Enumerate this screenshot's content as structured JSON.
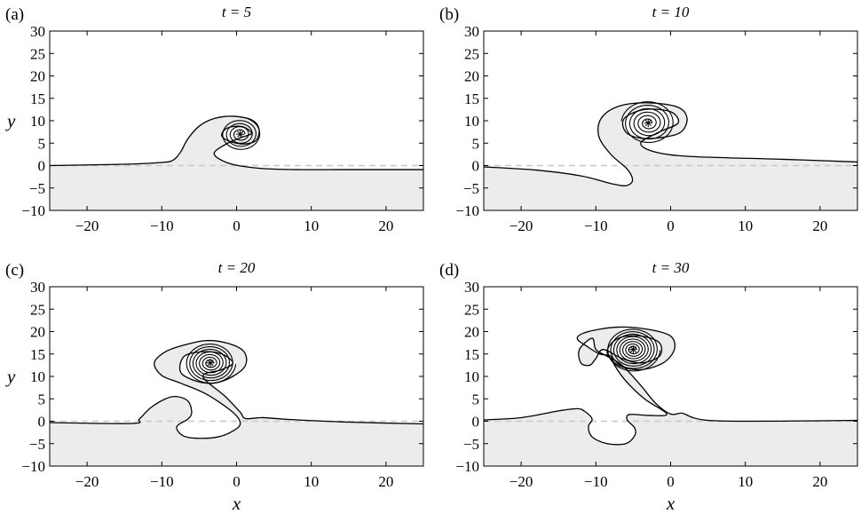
{
  "chart_data": [
    {
      "panel_label": "(a)",
      "title": "t = 5",
      "type": "area",
      "xlabel": "",
      "ylabel": "y",
      "xlim": [
        -25,
        25
      ],
      "ylim": [
        -10,
        30
      ],
      "xticks": [
        "−20",
        "−10",
        "0",
        "10",
        "20"
      ],
      "yticks": [
        "−10",
        "−5",
        "0",
        "5",
        "10",
        "15",
        "20",
        "25",
        "30"
      ],
      "vortex_center": [
        0.5,
        7
      ],
      "interface": [
        [
          -25,
          0
        ],
        [
          -15,
          0.3
        ],
        [
          -10,
          0.7
        ],
        [
          -8.5,
          1.2
        ],
        [
          -7.5,
          3
        ],
        [
          -6.5,
          6
        ],
        [
          -5,
          8.8
        ],
        [
          -3,
          10.5
        ],
        [
          -0.5,
          11
        ],
        [
          2,
          10.2
        ],
        [
          3,
          8.2
        ],
        [
          2.6,
          5.6
        ],
        [
          0.8,
          4.8
        ],
        [
          -1.2,
          5.6
        ],
        [
          -2,
          6.8
        ],
        [
          -1.2,
          8.4
        ],
        [
          0.7,
          8.7
        ],
        [
          2,
          7.2
        ],
        [
          0.5,
          6.2
        ],
        [
          -1.5,
          4.7
        ],
        [
          -3,
          2.6
        ],
        [
          -1,
          0.5
        ],
        [
          3,
          -0.6
        ],
        [
          8,
          -0.9
        ],
        [
          15,
          -0.9
        ],
        [
          25,
          -0.9
        ]
      ],
      "spiral": {
        "a": 0.6,
        "b": 2.7,
        "turns": 4.2
      }
    },
    {
      "panel_label": "(b)",
      "title": "t = 10",
      "type": "area",
      "xlabel": "",
      "ylabel": "",
      "xlim": [
        -25,
        25
      ],
      "ylim": [
        -10,
        30
      ],
      "xticks": [
        "−20",
        "−10",
        "0",
        "10",
        "20"
      ],
      "yticks": [
        "−10",
        "−5",
        "0",
        "5",
        "10",
        "15",
        "20",
        "25",
        "30"
      ],
      "vortex_center": [
        -3,
        9.5
      ],
      "interface": [
        [
          -25,
          -0.3
        ],
        [
          -18,
          -1
        ],
        [
          -12,
          -2.3
        ],
        [
          -8,
          -4
        ],
        [
          -6,
          -4.5
        ],
        [
          -5.1,
          -3.3
        ],
        [
          -5.8,
          -0.8
        ],
        [
          -8,
          2.5
        ],
        [
          -9.6,
          6.5
        ],
        [
          -9.3,
          10.5
        ],
        [
          -7,
          13.2
        ],
        [
          -3,
          14
        ],
        [
          1,
          13
        ],
        [
          2.2,
          10.5
        ],
        [
          1.4,
          7.5
        ],
        [
          -1,
          6.3
        ],
        [
          -4,
          6.1
        ],
        [
          -6,
          7.5
        ],
        [
          -6.2,
          10.5
        ],
        [
          -3.5,
          12.5
        ],
        [
          0,
          12
        ],
        [
          1,
          9.5
        ],
        [
          -1.5,
          7.5
        ],
        [
          -4,
          5
        ],
        [
          -2,
          3
        ],
        [
          3,
          2
        ],
        [
          15,
          1.4
        ],
        [
          25,
          0.8
        ]
      ],
      "spiral": {
        "a": 0.5,
        "b": 3.6,
        "turns": 5.5
      }
    },
    {
      "panel_label": "(c)",
      "title": "t = 20",
      "type": "area",
      "xlabel": "x",
      "ylabel": "y",
      "xlim": [
        -25,
        25
      ],
      "ylim": [
        -10,
        30
      ],
      "xticks": [
        "−20",
        "−10",
        "0",
        "10",
        "20"
      ],
      "yticks": [
        "−10",
        "−5",
        "0",
        "5",
        "10",
        "15",
        "20",
        "25",
        "30"
      ],
      "vortex_center": [
        -3.5,
        13
      ],
      "interface": [
        [
          -25,
          -0.3
        ],
        [
          -14,
          -0.5
        ],
        [
          -13,
          0.5
        ],
        [
          -11.5,
          3
        ],
        [
          -9.5,
          5
        ],
        [
          -8,
          5.5
        ],
        [
          -6.5,
          4.5
        ],
        [
          -6,
          2
        ],
        [
          -6.5,
          0.5
        ],
        [
          -8,
          -1.2
        ],
        [
          -7.2,
          -3.2
        ],
        [
          -5.2,
          -3.8
        ],
        [
          -2.5,
          -3.5
        ],
        [
          -0.5,
          -2.2
        ],
        [
          0.5,
          -0.5
        ],
        [
          -0.5,
          2
        ],
        [
          -4,
          6
        ],
        [
          -7.5,
          8.5
        ],
        [
          -10,
          10.2
        ],
        [
          -11,
          13
        ],
        [
          -9.5,
          15.5
        ],
        [
          -7,
          17
        ],
        [
          -4,
          18
        ],
        [
          -1,
          17.3
        ],
        [
          1,
          15.5
        ],
        [
          1.2,
          12.5
        ],
        [
          -0.5,
          10
        ],
        [
          -3,
          8.5
        ],
        [
          -5.5,
          9
        ],
        [
          -7.5,
          11
        ],
        [
          -7,
          14.5
        ],
        [
          -4.5,
          15.5
        ],
        [
          -2,
          15
        ],
        [
          -0.5,
          13
        ],
        [
          -2,
          11.5
        ],
        [
          -4.5,
          10
        ],
        [
          -1.5,
          5.5
        ],
        [
          0.5,
          2
        ],
        [
          1.2,
          0.6
        ],
        [
          3.5,
          0.8
        ],
        [
          7,
          0.4
        ],
        [
          15,
          -0.2
        ],
        [
          25,
          -0.6
        ]
      ],
      "spiral": {
        "a": 0.4,
        "b": 3.4,
        "turns": 7
      }
    },
    {
      "panel_label": "(d)",
      "title": "t = 30",
      "type": "area",
      "xlabel": "x",
      "ylabel": "",
      "xlim": [
        -25,
        25
      ],
      "ylim": [
        -10,
        30
      ],
      "xticks": [
        "−20",
        "−10",
        "0",
        "10",
        "20"
      ],
      "yticks": [
        "−10",
        "−5",
        "0",
        "5",
        "10",
        "15",
        "20",
        "25",
        "30"
      ],
      "vortex_center": [
        -5,
        16
      ],
      "interface": [
        [
          -25,
          0.3
        ],
        [
          -20,
          0.8
        ],
        [
          -15,
          2.3
        ],
        [
          -12.5,
          2.8
        ],
        [
          -11.5,
          2.2
        ],
        [
          -10.5,
          0.5
        ],
        [
          -11,
          -1.2
        ],
        [
          -10.5,
          -3.5
        ],
        [
          -8.5,
          -5
        ],
        [
          -6,
          -5
        ],
        [
          -4.8,
          -3.2
        ],
        [
          -4.8,
          -1.5
        ],
        [
          -5.8,
          0.3
        ],
        [
          -5.5,
          1.5
        ],
        [
          -3,
          1.3
        ],
        [
          -0.5,
          1.6
        ],
        [
          -3.5,
          5
        ],
        [
          -6,
          9
        ],
        [
          -7.5,
          12.5
        ],
        [
          -8,
          14.5
        ],
        [
          -9.5,
          15
        ],
        [
          -11,
          16.5
        ],
        [
          -12.5,
          18.5
        ],
        [
          -11,
          20
        ],
        [
          -7,
          21
        ],
        [
          -3,
          20.5
        ],
        [
          0,
          19
        ],
        [
          0.5,
          16
        ],
        [
          -1,
          13
        ],
        [
          -4,
          11.5
        ],
        [
          -7,
          12.5
        ],
        [
          -8.5,
          15.5
        ],
        [
          -7,
          18.5
        ],
        [
          -4,
          19
        ],
        [
          -1.5,
          17.5
        ],
        [
          -1.5,
          14.5
        ],
        [
          -4,
          13
        ],
        [
          -6.5,
          14
        ],
        [
          -9,
          16
        ],
        [
          -10,
          14
        ],
        [
          -10.8,
          12.5
        ],
        [
          -12,
          13
        ],
        [
          -12.2,
          16
        ],
        [
          -10.5,
          18.5
        ],
        [
          -10,
          16
        ],
        [
          -8.5,
          14.5
        ],
        [
          -6.5,
          12.5
        ],
        [
          -4,
          8
        ],
        [
          -2,
          4
        ],
        [
          0,
          1.6
        ],
        [
          1.5,
          1.8
        ],
        [
          3,
          0.8
        ],
        [
          5,
          0.2
        ],
        [
          10,
          0
        ],
        [
          20,
          0.1
        ],
        [
          25,
          0.2
        ]
      ],
      "spiral": {
        "a": 0.4,
        "b": 3.6,
        "turns": 8
      }
    }
  ],
  "style": {
    "fill_color": "#ececec",
    "line_color": "#000000",
    "dashed_color": "#c8c8c8"
  }
}
